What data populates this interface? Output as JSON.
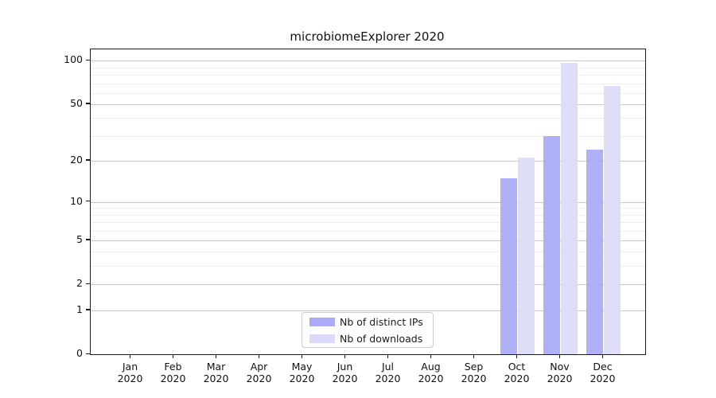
{
  "chart_data": {
    "type": "bar",
    "title": "microbiomeExplorer 2020",
    "y_scale": "log1p",
    "ylim": [
      0,
      120
    ],
    "grid": true,
    "legend_position": "lower center",
    "categories": [
      "Jan 2020",
      "Feb 2020",
      "Mar 2020",
      "Apr 2020",
      "May 2020",
      "Jun 2020",
      "Jul 2020",
      "Aug 2020",
      "Sep 2020",
      "Oct 2020",
      "Nov 2020",
      "Dec 2020"
    ],
    "series": [
      {
        "name": "Nb of distinct IPs",
        "color": "#aaaaf9",
        "values": [
          0,
          0,
          0,
          0,
          0,
          0,
          0,
          0,
          0,
          15,
          30,
          24
        ]
      },
      {
        "name": "Nb of downloads",
        "color": "#dbdbf9",
        "values": [
          0,
          0,
          0,
          0,
          0,
          0,
          0,
          0,
          0,
          21,
          97,
          67
        ]
      }
    ],
    "yticks_major": [
      0,
      1,
      2,
      5,
      10,
      20,
      50,
      100
    ],
    "yticks_minor": [
      3,
      4,
      6,
      7,
      8,
      9,
      30,
      40,
      60,
      70,
      80,
      90
    ]
  }
}
